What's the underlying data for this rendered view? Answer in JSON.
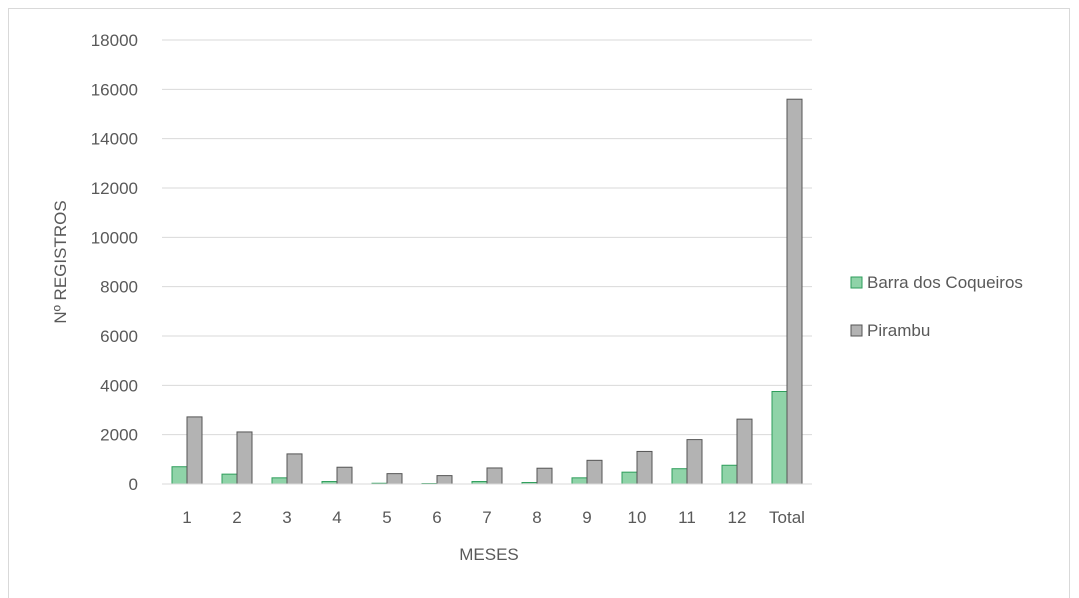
{
  "chart_data": {
    "type": "bar",
    "xlabel": "MESES",
    "ylabel": "Nº REGISTROS",
    "categories": [
      "1",
      "2",
      "3",
      "4",
      "5",
      "6",
      "7",
      "8",
      "9",
      "10",
      "11",
      "12",
      "Total"
    ],
    "ylim": [
      0,
      18000
    ],
    "yticks": [
      "0",
      "2000",
      "4000",
      "6000",
      "8000",
      "10000",
      "12000",
      "14000",
      "16000",
      "18000"
    ],
    "grid": true,
    "legend_position": "right",
    "series": [
      {
        "name": "Barra dos Coqueiros",
        "color": "#8fd3a8",
        "stroke": "#2e9e5b",
        "values": [
          700,
          400,
          250,
          100,
          30,
          20,
          100,
          60,
          250,
          480,
          620,
          760,
          3750
        ]
      },
      {
        "name": "Pirambu",
        "color": "#b3b3b3",
        "stroke": "#555555",
        "values": [
          2720,
          2110,
          1220,
          680,
          420,
          340,
          650,
          640,
          960,
          1320,
          1800,
          2630,
          15600
        ]
      }
    ]
  }
}
